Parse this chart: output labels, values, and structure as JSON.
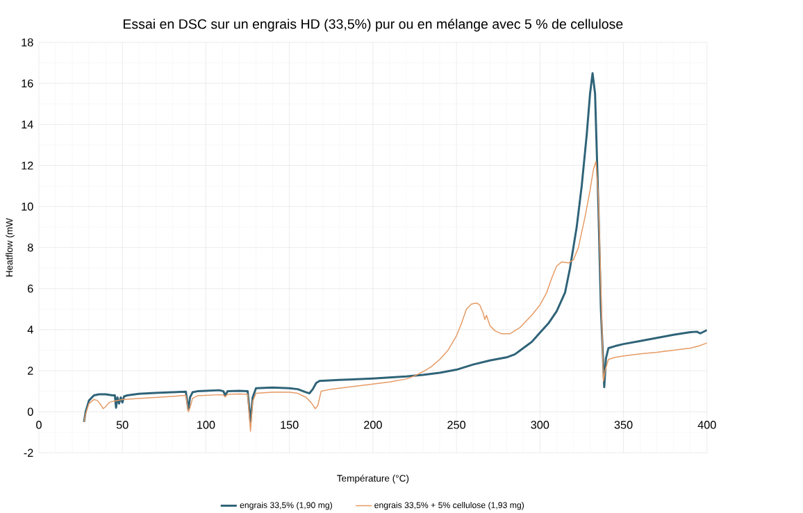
{
  "chart_data": {
    "type": "line",
    "title": "Essai en DSC sur un engrais HD (33,5%) pur ou en mélange avec 5 % de cellulose",
    "xlabel": "Température (°C)",
    "ylabel": "Heatflow (mW",
    "xlim": [
      0,
      400
    ],
    "xticks": [
      0,
      50,
      100,
      150,
      200,
      250,
      300,
      350,
      400
    ],
    "ylim": [
      -2,
      18
    ],
    "yticks": [
      -2,
      0,
      2,
      4,
      6,
      8,
      10,
      12,
      14,
      16,
      18
    ],
    "grid": true,
    "legend": "bottom",
    "marker": "none",
    "line_style": "solid",
    "series": [
      {
        "name": "engrais 33,5% (1,90 mg)",
        "color": "#2f6378",
        "x": [
          27,
          28,
          30,
          33,
          36,
          40,
          44,
          45.5,
          46.2,
          47,
          48,
          49,
          50,
          51,
          53,
          60,
          70,
          80,
          88,
          89.5,
          90.5,
          92,
          95,
          100,
          108,
          110.5,
          111.5,
          113,
          120,
          125,
          126.7,
          128,
          130,
          140,
          150,
          155,
          160,
          162,
          164,
          166,
          168,
          180,
          200,
          220,
          230,
          240,
          250,
          260,
          270,
          280,
          285,
          290,
          295,
          300,
          305,
          310,
          315,
          318,
          322,
          325,
          328,
          330,
          331.5,
          333,
          335,
          336.5,
          338.5,
          339.5,
          341,
          345,
          350,
          360,
          370,
          380,
          390,
          394,
          396,
          400
        ],
        "values": [
          -0.5,
          0.0,
          0.55,
          0.8,
          0.85,
          0.85,
          0.8,
          0.8,
          0.2,
          0.7,
          0.4,
          0.7,
          0.45,
          0.75,
          0.8,
          0.88,
          0.92,
          0.95,
          0.98,
          0.1,
          0.7,
          0.95,
          1.0,
          1.02,
          1.05,
          1.0,
          0.8,
          1.0,
          1.02,
          1.0,
          -0.5,
          0.7,
          1.15,
          1.18,
          1.15,
          1.1,
          0.95,
          0.9,
          1.1,
          1.4,
          1.5,
          1.55,
          1.62,
          1.72,
          1.8,
          1.9,
          2.05,
          2.3,
          2.5,
          2.65,
          2.8,
          3.1,
          3.4,
          3.85,
          4.3,
          4.9,
          5.8,
          7.0,
          9.0,
          11.0,
          13.5,
          15.5,
          16.5,
          15.5,
          10.0,
          5.0,
          1.2,
          2.6,
          3.1,
          3.2,
          3.3,
          3.45,
          3.6,
          3.75,
          3.88,
          3.9,
          3.82,
          3.98
        ]
      },
      {
        "name": "engrais 33,5% + 5% cellulose (1,93 mg)",
        "color": "#e69a64",
        "x": [
          27,
          28,
          30,
          33,
          35,
          37,
          38.5,
          40,
          42,
          44,
          47,
          50,
          60,
          70,
          80,
          88,
          89.5,
          90.5,
          92,
          95,
          100,
          108,
          110.5,
          111.5,
          113,
          120,
          125,
          126.7,
          128,
          130,
          140,
          150,
          155,
          160,
          163,
          165.5,
          167,
          169,
          175,
          190,
          200,
          210,
          220,
          225,
          230,
          235,
          240,
          245,
          250,
          253,
          256,
          259,
          262,
          264,
          266,
          267,
          268,
          270,
          273,
          277,
          282,
          288,
          295,
          300,
          304,
          307,
          310,
          313,
          317,
          320,
          323,
          327,
          330,
          332,
          333.5,
          335,
          336.5,
          338,
          339,
          341,
          345,
          350,
          360,
          370,
          380,
          390,
          395,
          400
        ],
        "values": [
          -0.5,
          -0.1,
          0.4,
          0.6,
          0.55,
          0.35,
          0.15,
          0.25,
          0.45,
          0.5,
          0.55,
          0.6,
          0.65,
          0.7,
          0.75,
          0.8,
          0.0,
          0.2,
          0.65,
          0.78,
          0.8,
          0.83,
          0.82,
          0.72,
          0.85,
          0.87,
          0.85,
          -0.95,
          0.5,
          0.9,
          0.95,
          0.95,
          0.9,
          0.7,
          0.45,
          0.15,
          0.3,
          1.0,
          1.1,
          1.25,
          1.35,
          1.45,
          1.6,
          1.75,
          1.95,
          2.2,
          2.55,
          3.0,
          3.7,
          4.3,
          5.0,
          5.25,
          5.3,
          5.2,
          4.8,
          4.5,
          4.7,
          4.2,
          3.95,
          3.8,
          3.8,
          4.1,
          4.7,
          5.2,
          5.8,
          6.5,
          7.1,
          7.3,
          7.25,
          7.4,
          8.0,
          9.5,
          10.8,
          11.8,
          12.2,
          10.5,
          6.0,
          1.5,
          2.0,
          2.55,
          2.65,
          2.72,
          2.82,
          2.9,
          3.0,
          3.1,
          3.2,
          3.35
        ]
      }
    ]
  }
}
